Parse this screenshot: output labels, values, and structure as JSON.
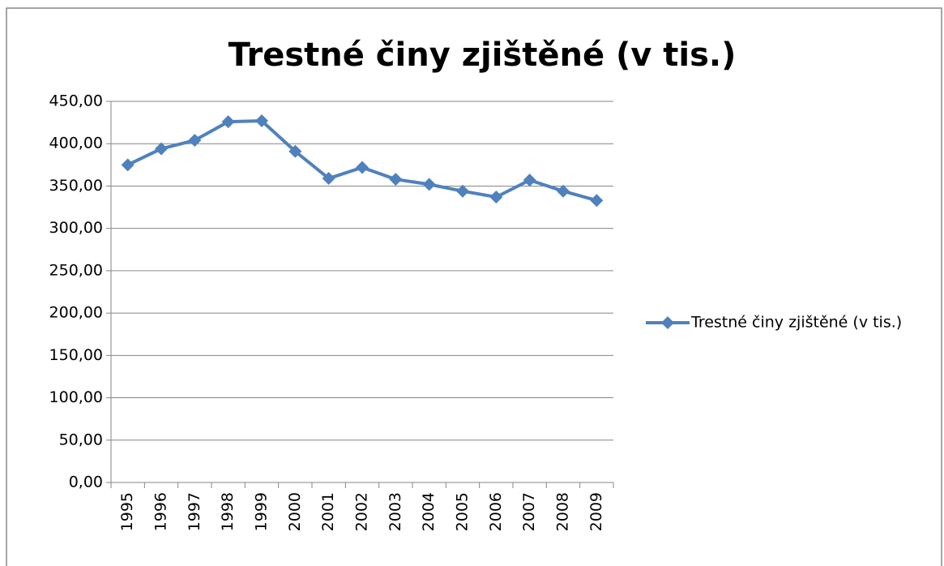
{
  "chart_data": {
    "type": "line",
    "title": "Trestné činy zjištěné (v tis.)",
    "categories": [
      "1995",
      "1996",
      "1997",
      "1998",
      "1999",
      "2000",
      "2001",
      "2002",
      "2003",
      "2004",
      "2005",
      "2006",
      "2007",
      "2008",
      "2009"
    ],
    "series": [
      {
        "name": "Trestné činy zjištěné (v tis.)",
        "color": "#4f81bd",
        "values": [
          375,
          394,
          404,
          426,
          427,
          391,
          359,
          372,
          358,
          352,
          344,
          337,
          357,
          344,
          333
        ]
      }
    ],
    "ylim": [
      0,
      450
    ],
    "yticks": [
      {
        "value": 0,
        "label": "0,00"
      },
      {
        "value": 50,
        "label": "50,00"
      },
      {
        "value": 100,
        "label": "100,00"
      },
      {
        "value": 150,
        "label": "150,00"
      },
      {
        "value": 200,
        "label": "200,00"
      },
      {
        "value": 250,
        "label": "250,00"
      },
      {
        "value": 300,
        "label": "300,00"
      },
      {
        "value": 350,
        "label": "350,00"
      },
      {
        "value": 400,
        "label": "400,00"
      },
      {
        "value": 450,
        "label": "450,00"
      }
    ],
    "grid": true,
    "legend": "right"
  }
}
